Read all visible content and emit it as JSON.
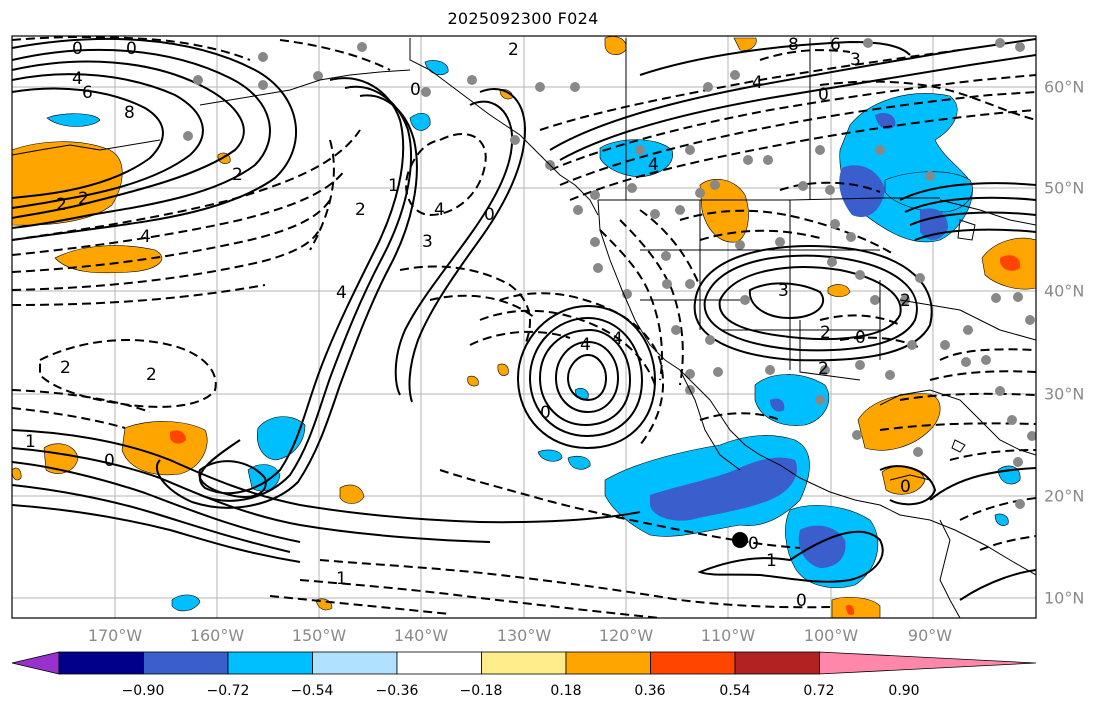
{
  "title": "2025092300 F024",
  "lon_labels": [
    "170°W",
    "160°W",
    "150°W",
    "140°W",
    "130°W",
    "120°W",
    "110°W",
    "100°W",
    "90°W"
  ],
  "lat_labels": [
    "60°N",
    "50°N",
    "40°N",
    "30°N",
    "20°N",
    "10°N"
  ],
  "colorbar": {
    "ticks": [
      "−0.90",
      "−0.72",
      "−0.54",
      "−0.36",
      "−0.18",
      "0.18",
      "0.36",
      "0.54",
      "0.72",
      "0.90"
    ],
    "colors": [
      "#9932CC",
      "#00008B",
      "#3A5FCD",
      "#00BFFF",
      "#B0E2FF",
      "#FFFFFF",
      "#FFEC8B",
      "#FFA500",
      "#FF4500",
      "#B22222",
      "#FF88AA"
    ]
  },
  "contour_labels": [
    {
      "text": "0"
    },
    {
      "text": "0"
    },
    {
      "text": "4"
    },
    {
      "text": "6"
    },
    {
      "text": "8"
    },
    {
      "text": "2"
    },
    {
      "text": "2"
    },
    {
      "text": "4"
    },
    {
      "text": "2"
    },
    {
      "text": "2"
    },
    {
      "text": "1"
    },
    {
      "text": "0"
    },
    {
      "text": "3"
    },
    {
      "text": "4"
    },
    {
      "text": "4"
    },
    {
      "text": "0"
    },
    {
      "text": "1"
    },
    {
      "text": "2"
    },
    {
      "text": "4"
    },
    {
      "text": "0"
    },
    {
      "text": "2"
    },
    {
      "text": "8"
    },
    {
      "text": "6"
    },
    {
      "text": "3"
    },
    {
      "text": "4"
    },
    {
      "text": "0"
    },
    {
      "text": "4"
    },
    {
      "text": "0"
    },
    {
      "text": "3"
    },
    {
      "text": "2"
    },
    {
      "text": "2"
    },
    {
      "text": "0"
    },
    {
      "text": "2"
    },
    {
      "text": "0"
    },
    {
      "text": "1"
    },
    {
      "text": "0"
    },
    {
      "text": "1"
    },
    {
      "text": "0"
    },
    {
      "text": "2"
    },
    {
      "text": "4"
    }
  ]
}
